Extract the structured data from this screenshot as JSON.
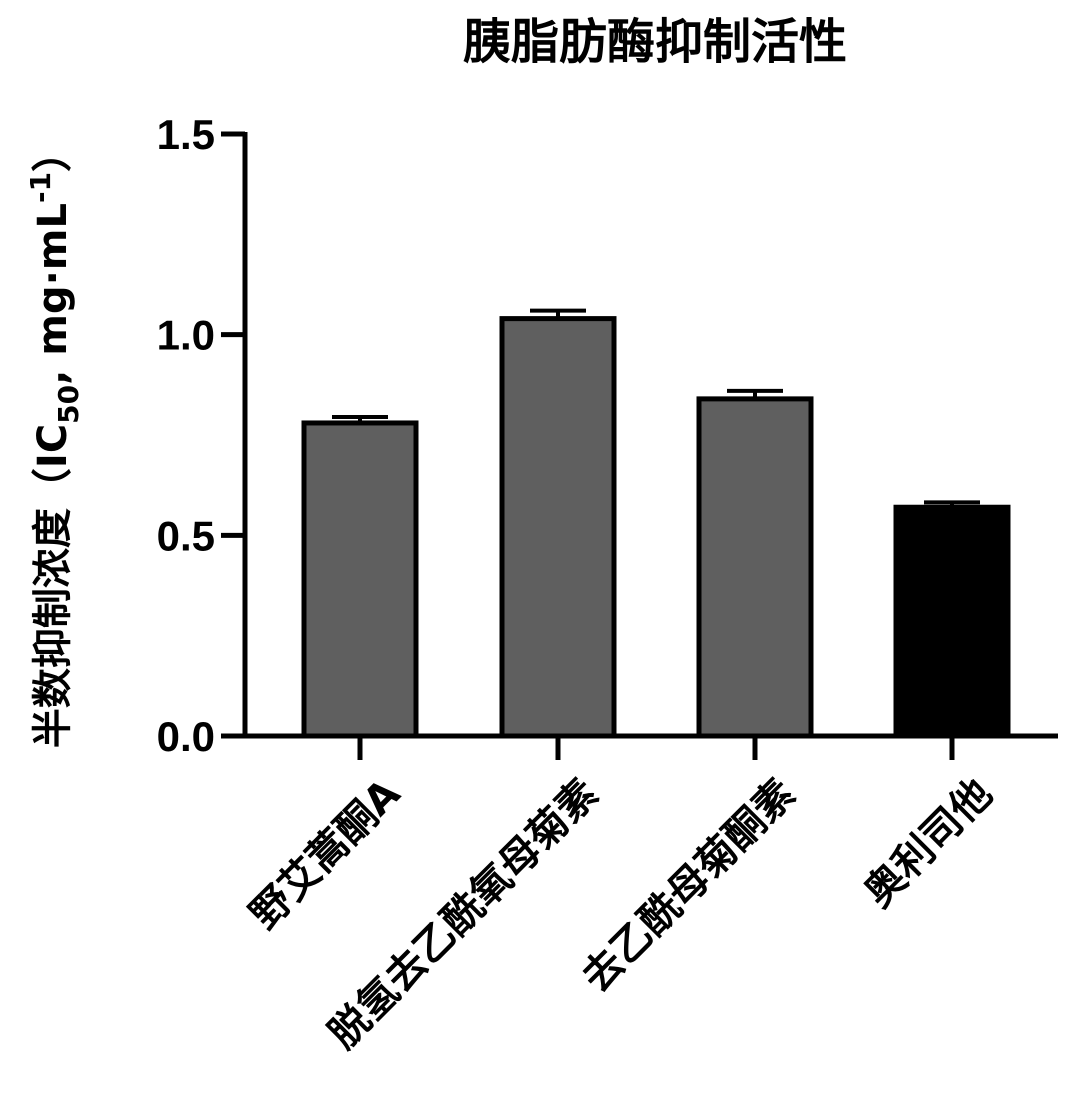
{
  "chart_data": {
    "type": "bar",
    "title": "胰脂肪酶抑制活性",
    "ylabel": {
      "main": "半数抑制浓度（IC",
      "sub": "50",
      "mid": ", mg·mL",
      "sup": "-1",
      "end": "）"
    },
    "xlabel": "",
    "categories": [
      "野艾蒿酮A",
      "脱氢去乙酰氧母菊素",
      "去乙酰母菊酮素",
      "奥利司他"
    ],
    "values": [
      0.78,
      1.04,
      0.84,
      0.57
    ],
    "errors": [
      0.015,
      0.02,
      0.02,
      0.012
    ],
    "colors": [
      "#5f5f5f",
      "#5f5f5f",
      "#5f5f5f",
      "#000000"
    ],
    "ylim": [
      0,
      1.5
    ],
    "yticks": [
      "0.0",
      "0.5",
      "1.0",
      "1.5"
    ],
    "grid": false
  }
}
